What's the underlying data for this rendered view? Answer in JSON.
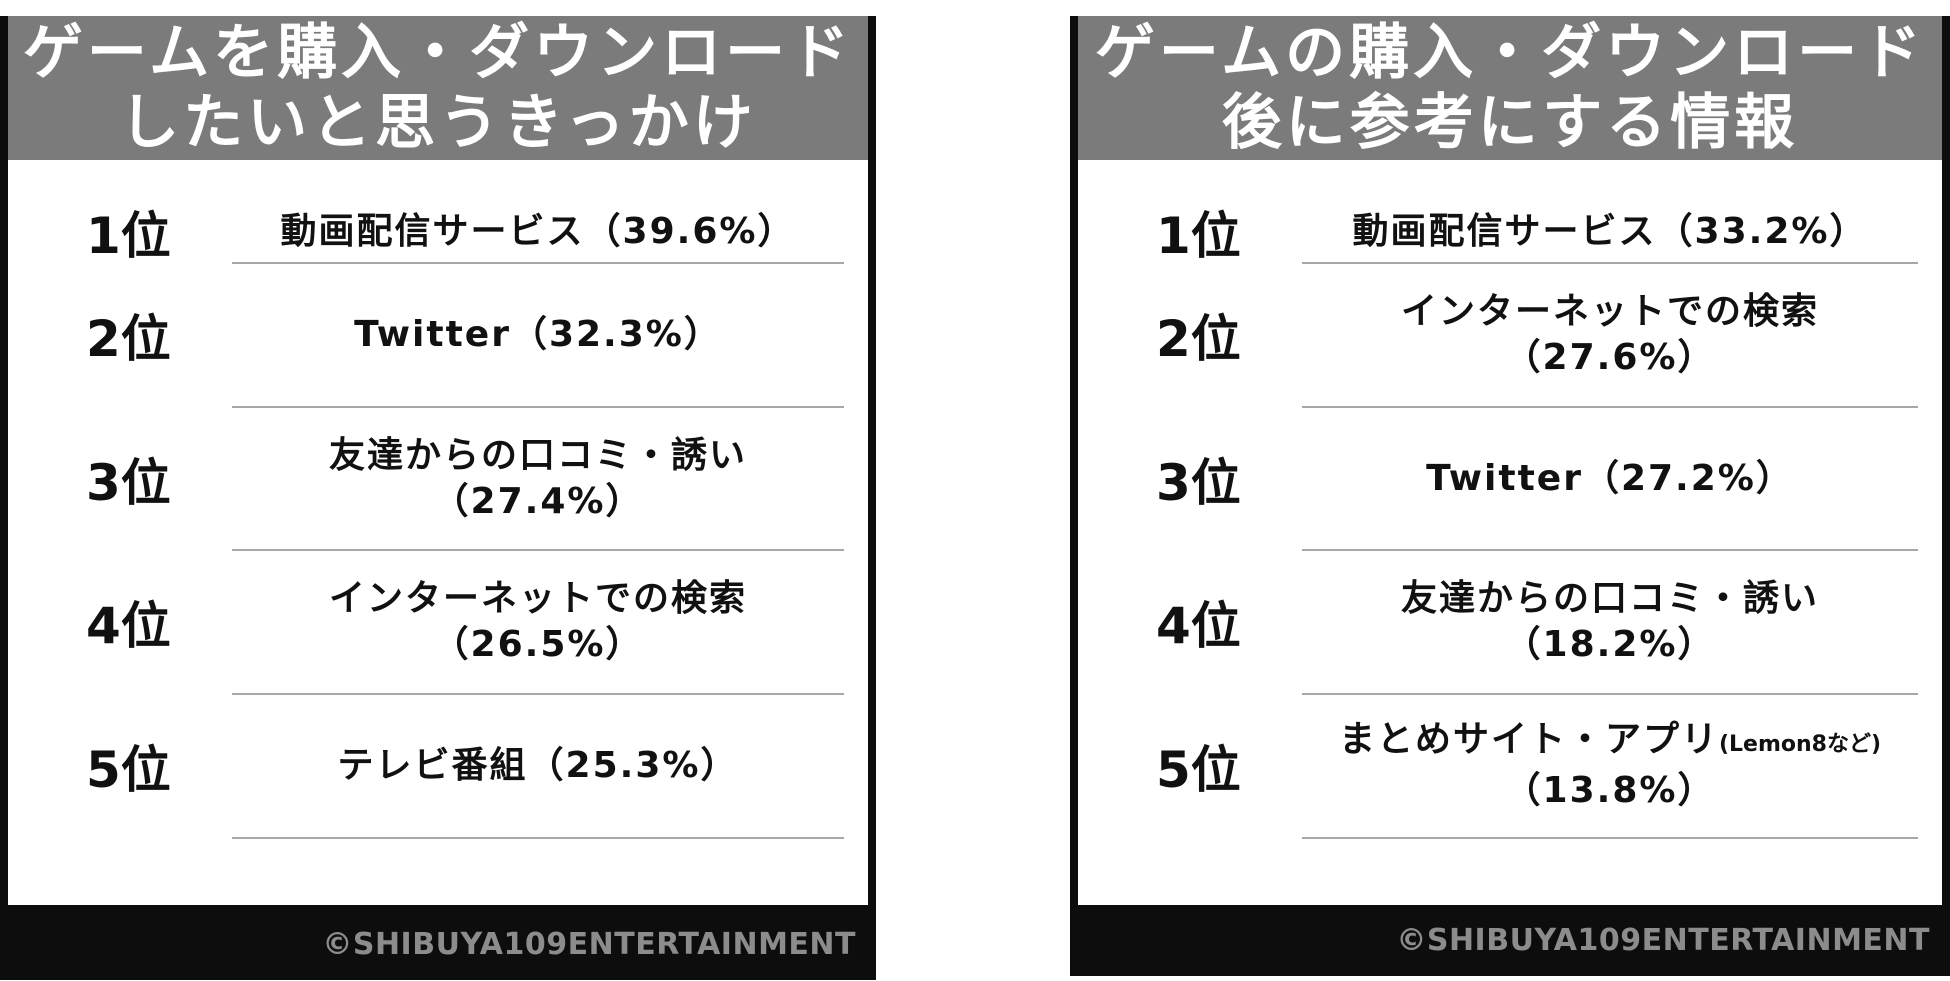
{
  "left_panel": {
    "title_line1": "ゲームを購入・ダウンロード",
    "title_line2": "したいと思うきっかけ",
    "rows": [
      {
        "rank": "1位",
        "line1": "動画配信サービス（39.6%）",
        "line2": ""
      },
      {
        "rank": "2位",
        "line1": "Twitter（32.3%）",
        "line2": ""
      },
      {
        "rank": "3位",
        "line1": "友達からの口コミ・誘い",
        "line2": "（27.4%）"
      },
      {
        "rank": "4位",
        "line1": "インターネットでの検索",
        "line2": "（26.5%）"
      },
      {
        "rank": "5位",
        "line1": "テレビ番組（25.3%）",
        "line2": ""
      }
    ],
    "copyright": "©SHIBUYA109ENTERTAINMENT"
  },
  "right_panel": {
    "title_line1": "ゲームの購入・ダウンロード",
    "title_line2": "後に参考にする情報",
    "rows": [
      {
        "rank": "1位",
        "line1": "動画配信サービス（33.2%）",
        "line1_small": "",
        "line2": ""
      },
      {
        "rank": "2位",
        "line1": "インターネットでの検索",
        "line1_small": "",
        "line2": "（27.6%）"
      },
      {
        "rank": "3位",
        "line1": "Twitter（27.2%）",
        "line1_small": "",
        "line2": ""
      },
      {
        "rank": "4位",
        "line1": "友達からの口コミ・誘い",
        "line1_small": "",
        "line2": "（18.2%）"
      },
      {
        "rank": "5位",
        "line1": "まとめサイト・アプリ",
        "line1_small": "(Lemon8など)",
        "line2": "（13.8%）"
      }
    ],
    "copyright": "©SHIBUYA109ENTERTAINMENT"
  },
  "colors": {
    "frame": "#0d0d0d",
    "header_bg": "#7a7b7a",
    "header_text": "#ffffff",
    "divider": "#a8a8a8",
    "copyright_text": "#8c8c8c"
  }
}
